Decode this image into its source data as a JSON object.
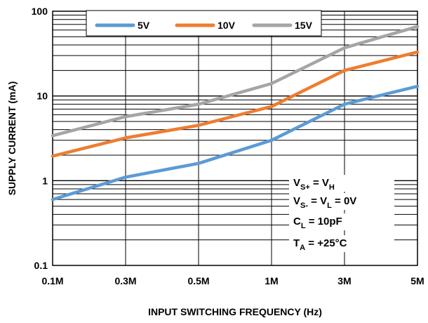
{
  "chart_data": {
    "type": "line",
    "title": "",
    "xlabel": "INPUT SWITCHING FREQUENCY (Hz)",
    "ylabel": "SUPPLY CURRENT (mA)",
    "y_scale": "log",
    "ylim": [
      0.1,
      100
    ],
    "x_scale": "categorical",
    "x_categories": [
      "0.1M",
      "0.3M",
      "0.5M",
      "1M",
      "3M",
      "5M"
    ],
    "y_tick_labels": [
      "100",
      "10",
      "1",
      "0.1"
    ],
    "grid": true,
    "legend_position": "top-center",
    "series": [
      {
        "name": "5V",
        "color": "#5b9bd5",
        "values": [
          0.6,
          1.1,
          1.6,
          3.0,
          8.0,
          13.0
        ]
      },
      {
        "name": "10V",
        "color": "#ed7d31",
        "values": [
          1.95,
          3.2,
          4.5,
          7.5,
          20.0,
          33.0
        ]
      },
      {
        "name": "15V",
        "color": "#a5a5a5",
        "values": [
          3.4,
          5.7,
          8.0,
          14.0,
          37.0,
          66.0
        ]
      }
    ],
    "annotations": [
      {
        "main": "V",
        "sub1": "S+",
        "mid": " = V",
        "sub2": "H",
        "tail": ""
      },
      {
        "main": "V",
        "sub1": "S-",
        "mid": " = V",
        "sub2": "L",
        "tail": " = 0V"
      },
      {
        "main": "C",
        "sub1": "L",
        "mid": " = 10pF",
        "sub2": "",
        "tail": ""
      },
      {
        "main": "T",
        "sub1": "A",
        "mid": " = +25°C",
        "sub2": "",
        "tail": ""
      }
    ]
  }
}
